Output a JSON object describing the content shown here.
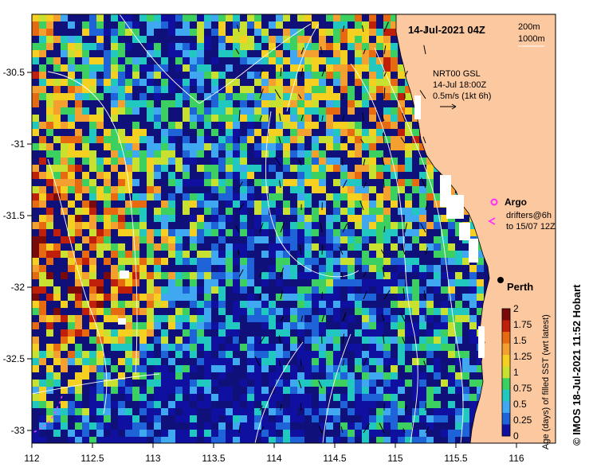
{
  "header": {
    "title": "14-Jul-2021 04Z",
    "depth_a": "200m",
    "depth_b": "1000m"
  },
  "current_key": {
    "line1": "NRT00 GSL",
    "line2": "14-Jul 18:00Z",
    "line3": "0.5m/s (1kt 6h)"
  },
  "markers": {
    "argo_label": "Argo",
    "drifters_line1": "drifters@6h",
    "drifters_line2": "to 15/07 12Z",
    "city": "Perth"
  },
  "axes": {
    "x_ticks": [
      "112",
      "112.5",
      "113",
      "113.5",
      "114",
      "114.5",
      "115",
      "115.5",
      "116"
    ],
    "y_ticks": [
      "-30.5",
      "-31",
      "-31.5",
      "-32",
      "-32.5",
      "-33"
    ]
  },
  "colorbar": {
    "label": "Age (days) of filled SST (wrt latest)",
    "ticks": [
      "2",
      "1.75",
      "1.5",
      "1.25",
      "1",
      "0.75",
      "0.5",
      "0.25",
      "0"
    ],
    "colors": [
      "#7a0a0a",
      "#c0200a",
      "#e86a10",
      "#f4a030",
      "#f6d020",
      "#c8e030",
      "#3cd060",
      "#20c8c0",
      "#40a8f0",
      "#1e64d8",
      "#1010a0"
    ]
  },
  "credit": "© IMOS 18-Jul-2021 11:52 Hobart"
}
